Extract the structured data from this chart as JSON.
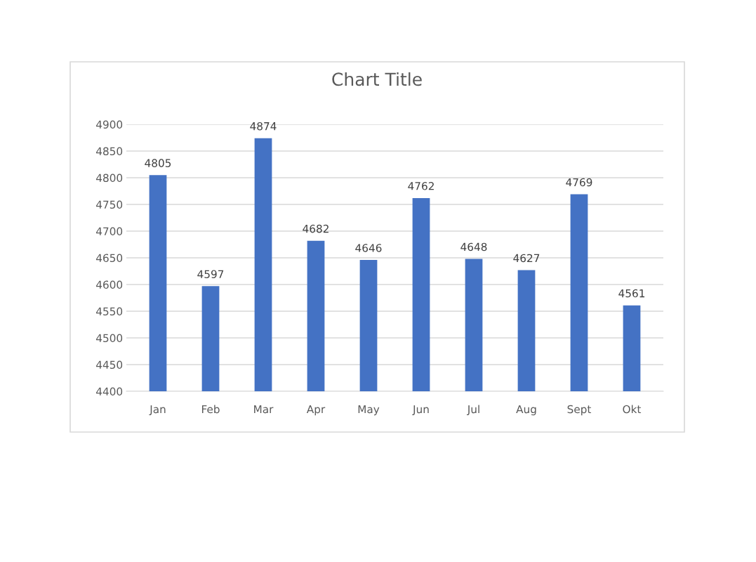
{
  "chart_data": {
    "type": "bar",
    "title": "Chart Title",
    "categories": [
      "Jan",
      "Feb",
      "Mar",
      "Apr",
      "May",
      "Jun",
      "Jul",
      "Aug",
      "Sept",
      "Okt"
    ],
    "values": [
      4805,
      4597,
      4874,
      4682,
      4646,
      4762,
      4648,
      4627,
      4769,
      4561
    ],
    "color": "#4472c4",
    "ylim": [
      4400,
      4900
    ],
    "yticks": [
      4400,
      4450,
      4500,
      4550,
      4600,
      4650,
      4700,
      4750,
      4800,
      4850,
      4900
    ],
    "grid": "y",
    "data_labels": true
  }
}
